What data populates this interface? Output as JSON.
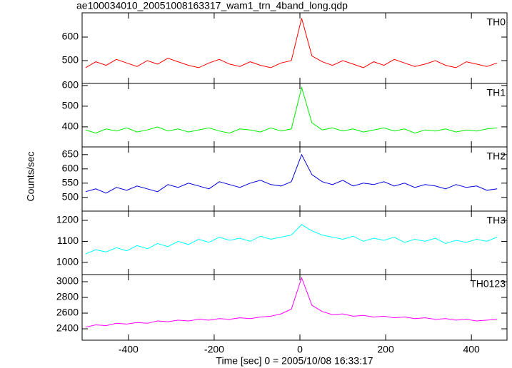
{
  "chart_data": [
    {
      "type": "line",
      "title": "ae100034010_20051008163317_wam1_trn_4band_long.qdp",
      "label": "TH0",
      "color": "#ff0000",
      "x": [
        -500,
        -476,
        -452,
        -428,
        -404,
        -380,
        -356,
        -332,
        -308,
        -284,
        -260,
        -236,
        -212,
        -188,
        -164,
        -140,
        -116,
        -92,
        -68,
        -44,
        -20,
        4,
        28,
        52,
        76,
        100,
        124,
        148,
        172,
        196,
        220,
        244,
        268,
        292,
        316,
        340,
        364,
        388,
        412,
        436,
        460
      ],
      "values": [
        470,
        495,
        480,
        505,
        490,
        475,
        500,
        485,
        510,
        495,
        480,
        470,
        490,
        505,
        485,
        475,
        495,
        480,
        470,
        490,
        500,
        680,
        520,
        495,
        480,
        500,
        485,
        470,
        495,
        480,
        505,
        490,
        475,
        485,
        500,
        480,
        470,
        495,
        485,
        475,
        490
      ],
      "xlim": [
        -508,
        483
      ],
      "ylim": [
        403,
        703
      ],
      "yticks": [
        500,
        600
      ]
    },
    {
      "type": "line",
      "label": "TH1",
      "color": "#00ee00",
      "x": [
        -500,
        -476,
        -452,
        -428,
        -404,
        -380,
        -356,
        -332,
        -308,
        -284,
        -260,
        -236,
        -212,
        -188,
        -164,
        -140,
        -116,
        -92,
        -68,
        -44,
        -20,
        4,
        28,
        52,
        76,
        100,
        124,
        148,
        172,
        196,
        220,
        244,
        268,
        292,
        316,
        340,
        364,
        388,
        412,
        436,
        460
      ],
      "values": [
        385,
        370,
        390,
        380,
        395,
        375,
        385,
        400,
        380,
        390,
        375,
        385,
        395,
        380,
        370,
        390,
        385,
        375,
        395,
        380,
        390,
        590,
        420,
        385,
        395,
        380,
        390,
        375,
        385,
        395,
        380,
        390,
        370,
        385,
        380,
        390,
        375,
        385,
        380,
        390,
        395
      ],
      "xlim": [
        -508,
        483
      ],
      "ylim": [
        303,
        610
      ],
      "yticks": [
        400,
        500,
        600
      ]
    },
    {
      "type": "line",
      "label": "TH2",
      "ylabel": "Counts/sec",
      "color": "#0000dd",
      "x": [
        -500,
        -476,
        -452,
        -428,
        -404,
        -380,
        -356,
        -332,
        -308,
        -284,
        -260,
        -236,
        -212,
        -188,
        -164,
        -140,
        -116,
        -92,
        -68,
        -44,
        -20,
        4,
        28,
        52,
        76,
        100,
        124,
        148,
        172,
        196,
        220,
        244,
        268,
        292,
        316,
        340,
        364,
        388,
        412,
        436,
        460
      ],
      "values": [
        520,
        530,
        515,
        535,
        525,
        540,
        530,
        520,
        545,
        535,
        550,
        540,
        530,
        555,
        545,
        535,
        550,
        560,
        545,
        540,
        555,
        650,
        580,
        555,
        545,
        560,
        540,
        550,
        545,
        555,
        540,
        550,
        535,
        545,
        540,
        530,
        545,
        535,
        540,
        525,
        530
      ],
      "xlim": [
        -508,
        483
      ],
      "ylim": [
        452,
        677
      ],
      "yticks": [
        500,
        550,
        600,
        650
      ]
    },
    {
      "type": "line",
      "label": "TH3",
      "color": "#00ffff",
      "x": [
        -500,
        -476,
        -452,
        -428,
        -404,
        -380,
        -356,
        -332,
        -308,
        -284,
        -260,
        -236,
        -212,
        -188,
        -164,
        -140,
        -116,
        -92,
        -68,
        -44,
        -20,
        4,
        28,
        52,
        76,
        100,
        124,
        148,
        172,
        196,
        220,
        244,
        268,
        292,
        316,
        340,
        364,
        388,
        412,
        436,
        460
      ],
      "values": [
        1040,
        1060,
        1050,
        1070,
        1055,
        1080,
        1065,
        1090,
        1075,
        1100,
        1085,
        1110,
        1095,
        1120,
        1105,
        1115,
        1100,
        1125,
        1110,
        1120,
        1130,
        1180,
        1150,
        1130,
        1120,
        1110,
        1125,
        1100,
        1115,
        1105,
        1120,
        1095,
        1110,
        1100,
        1115,
        1090,
        1105,
        1095,
        1110,
        1100,
        1120
      ],
      "xlim": [
        -508,
        483
      ],
      "ylim": [
        942,
        1244
      ],
      "yticks": [
        1000,
        1100,
        1200
      ]
    },
    {
      "type": "line",
      "label": "TH0123",
      "color": "#ff00ff",
      "xlabel": "Time [sec] 0 = 2005/10/08 16:33:17",
      "x": [
        -500,
        -476,
        -452,
        -428,
        -404,
        -380,
        -356,
        -332,
        -308,
        -284,
        -260,
        -236,
        -212,
        -188,
        -164,
        -140,
        -116,
        -92,
        -68,
        -44,
        -20,
        4,
        28,
        52,
        76,
        100,
        124,
        148,
        172,
        196,
        220,
        244,
        268,
        292,
        316,
        340,
        364,
        388,
        412,
        436,
        460
      ],
      "values": [
        2420,
        2450,
        2440,
        2470,
        2460,
        2480,
        2470,
        2500,
        2490,
        2510,
        2500,
        2520,
        2510,
        2530,
        2520,
        2540,
        2530,
        2550,
        2560,
        2590,
        2650,
        3050,
        2700,
        2620,
        2580,
        2590,
        2560,
        2570,
        2550,
        2560,
        2540,
        2550,
        2530,
        2540,
        2520,
        2530,
        2510,
        2520,
        2500,
        2510,
        2520
      ],
      "xlim": [
        -508,
        483
      ],
      "ylim": [
        2255,
        3091
      ],
      "yticks": [
        2400,
        2600,
        2800,
        3000
      ],
      "xticks": [
        -400,
        -200,
        0,
        200,
        400
      ]
    }
  ]
}
